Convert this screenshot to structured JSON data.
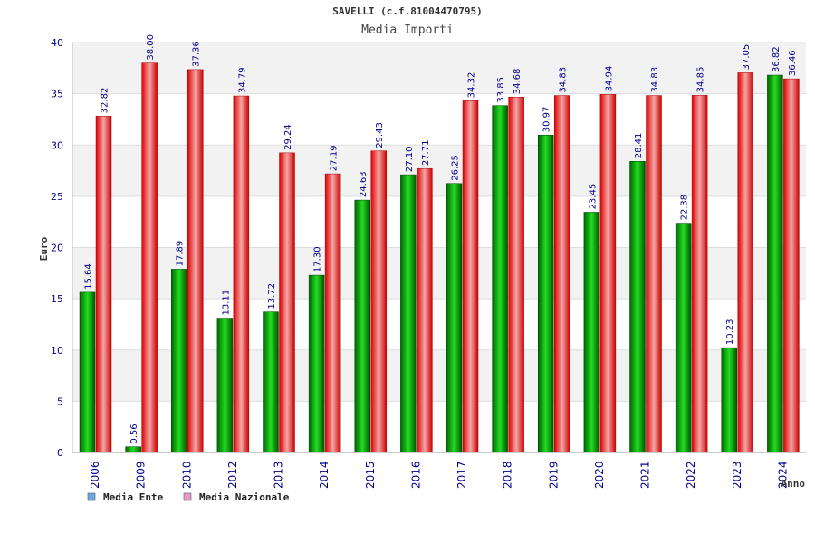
{
  "chart_data": {
    "type": "bar",
    "title": "SAVELLI (c.f.81004470795)",
    "subtitle": "Media Importi",
    "ylabel": "Euro",
    "xlabel": "Anno",
    "ylim": [
      0,
      40
    ],
    "yticks": [
      "0",
      "5",
      "10",
      "15",
      "20",
      "25",
      "30",
      "35",
      "40"
    ],
    "grid": true,
    "legend_position": "bottom-left",
    "categories": [
      "2006",
      "2009",
      "2010",
      "2012",
      "2013",
      "2014",
      "2015",
      "2016",
      "2017",
      "2018",
      "2019",
      "2020",
      "2021",
      "2022",
      "2023",
      "2024"
    ],
    "series": [
      {
        "name": "Media Ente",
        "color": "#00aa00",
        "legend_color": "#6fa8e0",
        "values": [
          15.64,
          0.56,
          17.89,
          13.11,
          13.72,
          17.3,
          24.63,
          27.1,
          26.25,
          33.85,
          30.97,
          23.45,
          28.41,
          22.38,
          10.23,
          36.82
        ],
        "labels": [
          "15.64",
          "0.56",
          "17.89",
          "13.11",
          "13.72",
          "17.30",
          "24.63",
          "27.10",
          "26.25",
          "33.85",
          "30.97",
          "23.45",
          "28.41",
          "22.38",
          "10.23",
          "36.82"
        ]
      },
      {
        "name": "Media Nazionale",
        "color": "#ee1111",
        "legend_color": "#e89ac0",
        "values": [
          32.82,
          38.0,
          37.36,
          34.79,
          29.24,
          27.19,
          29.43,
          27.71,
          34.32,
          34.68,
          34.83,
          34.94,
          34.83,
          34.85,
          37.05,
          36.46
        ],
        "labels": [
          "32.82",
          "38.00",
          "37.36",
          "34.79",
          "29.24",
          "27.19",
          "29.43",
          "27.71",
          "34.32",
          "34.68",
          "34.83",
          "34.94",
          "34.83",
          "34.85",
          "37.05",
          "36.46"
        ]
      }
    ]
  }
}
